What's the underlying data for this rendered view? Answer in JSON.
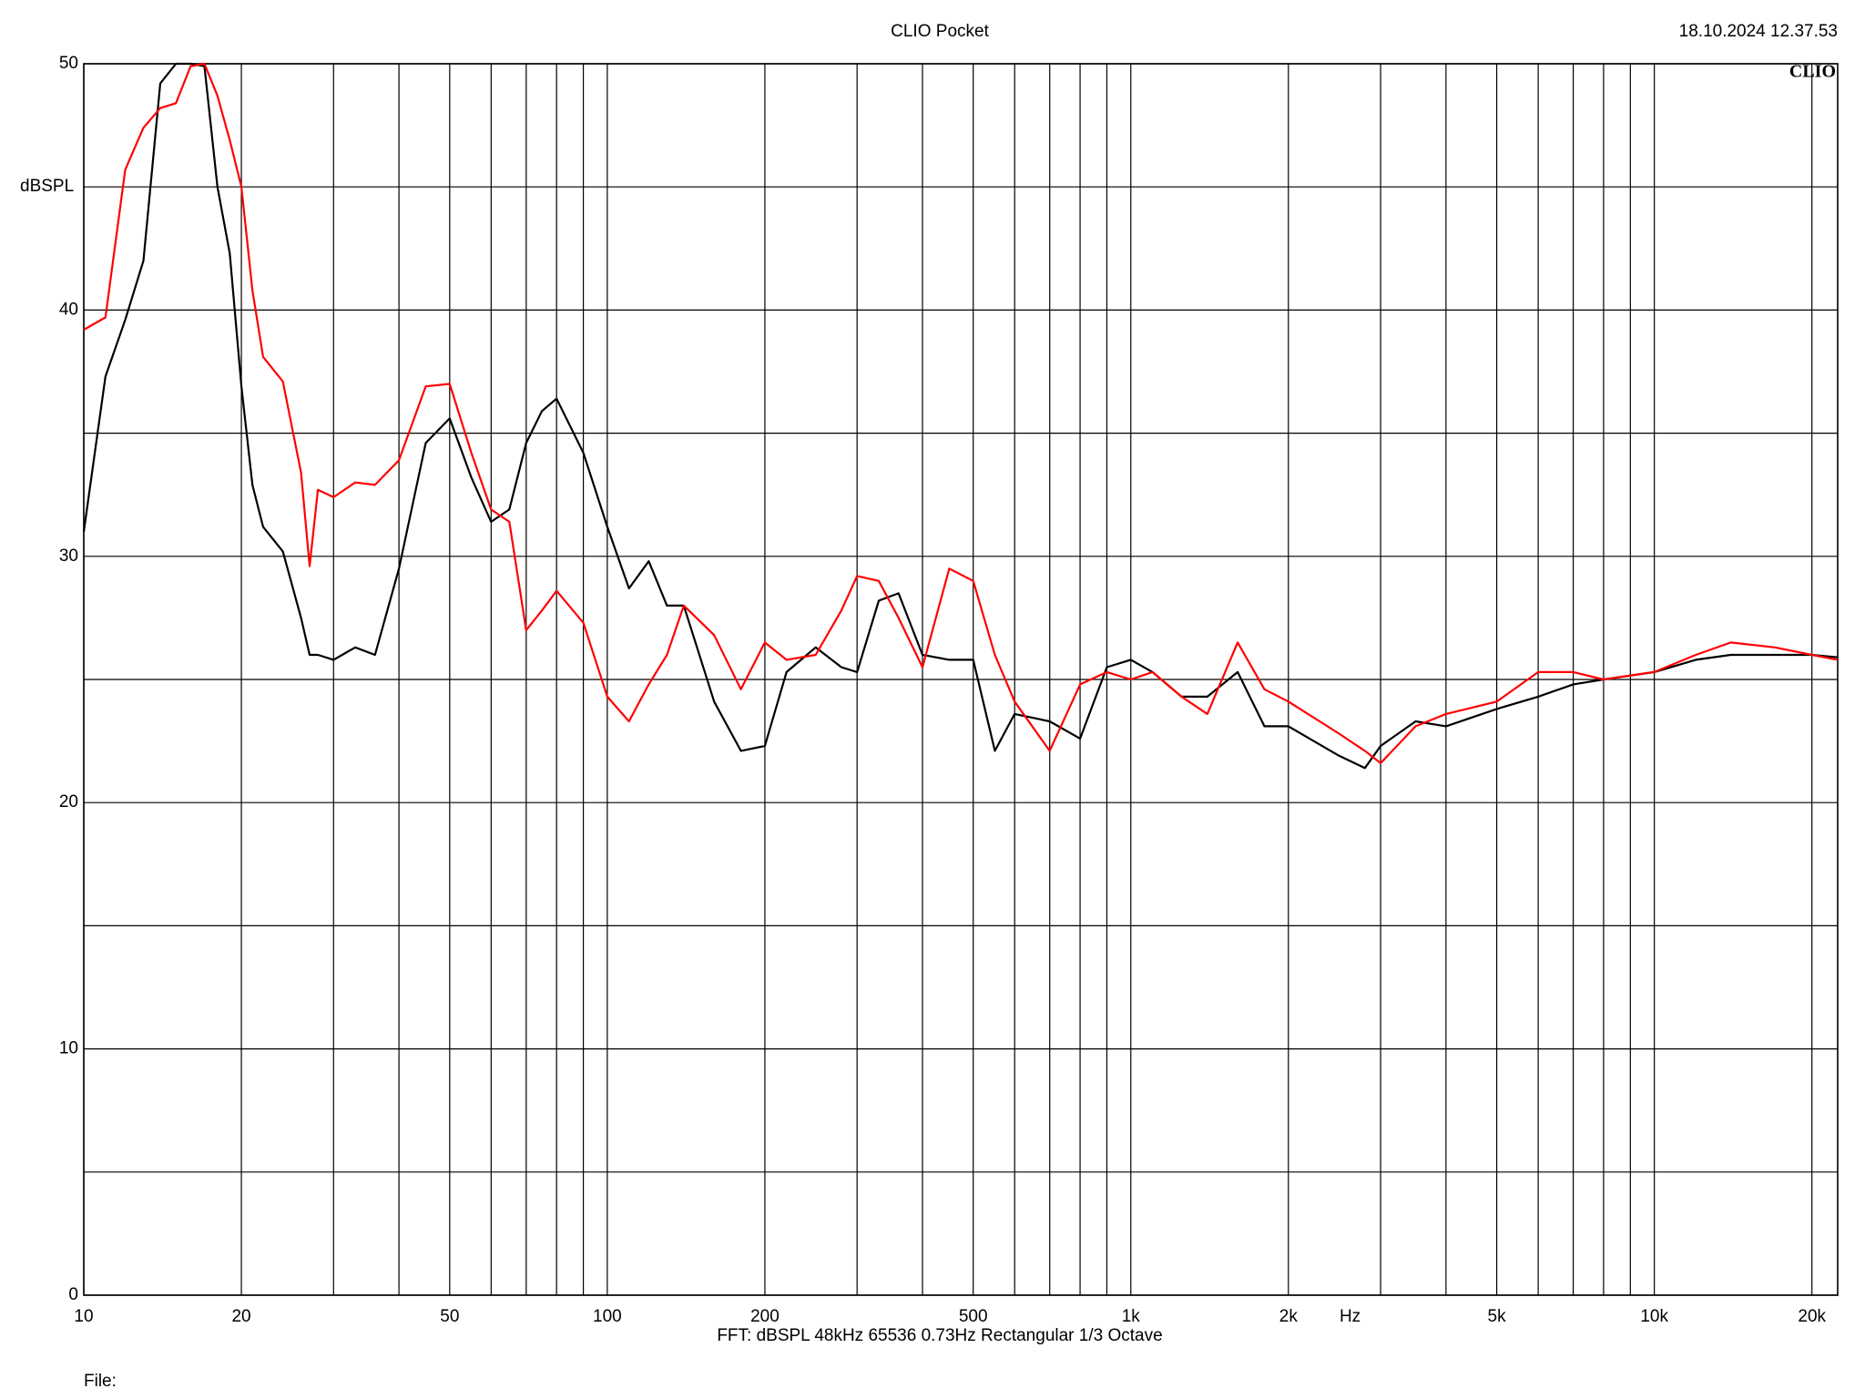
{
  "chart_data": {
    "type": "line",
    "title": "CLIO Pocket",
    "timestamp": "18.10.2024 12.37.53",
    "logo": "CLIO",
    "ylabel": "dBSPL",
    "xlabel": "Hz",
    "footer": "FFT:  dBSPL  48kHz  65536  0.73Hz  Rectangular  1/3 Octave",
    "file_label": "File:",
    "xscale": "log",
    "grid": true,
    "xlim": [
      10,
      22400
    ],
    "ylim": [
      0,
      50
    ],
    "xticks": [
      10,
      20,
      50,
      100,
      200,
      500,
      {
        "value": 1000,
        "label": "1k"
      },
      {
        "value": 2000,
        "label": "2k"
      },
      {
        "value": 5000,
        "label": "5k"
      },
      {
        "value": 10000,
        "label": "10k"
      },
      {
        "value": 20000,
        "label": "20k"
      }
    ],
    "x_minor_ticks": [
      30,
      40,
      60,
      70,
      80,
      90,
      300,
      400,
      600,
      700,
      800,
      900,
      3000,
      4000,
      6000,
      7000,
      8000,
      9000
    ],
    "yticks": [
      0,
      10,
      20,
      30,
      40,
      50
    ],
    "y_minor_ticks": [
      5,
      15,
      25,
      35,
      45
    ],
    "x": [
      10,
      11,
      12,
      13,
      14,
      15,
      16,
      17,
      18,
      19,
      20,
      21,
      22,
      24,
      26,
      27,
      28,
      30,
      33,
      36,
      40,
      45,
      50,
      55,
      60,
      65,
      70,
      75,
      80,
      90,
      100,
      110,
      120,
      130,
      140,
      160,
      180,
      200,
      220,
      250,
      280,
      300,
      330,
      360,
      400,
      450,
      500,
      550,
      600,
      700,
      800,
      900,
      1000,
      1100,
      1250,
      1400,
      1600,
      1800,
      2000,
      2500,
      2800,
      3000,
      3500,
      4000,
      5000,
      6000,
      7000,
      8000,
      10000,
      12000,
      14000,
      17000,
      20000,
      22400
    ],
    "series": [
      {
        "color": "#000000",
        "values": [
          31.0,
          37.3,
          39.6,
          42.0,
          49.2,
          50,
          50,
          49.9,
          45.0,
          42.3,
          36.9,
          32.9,
          31.2,
          30.2,
          27.5,
          26.0,
          26.0,
          25.8,
          26.3,
          26.0,
          29.5,
          34.6,
          35.6,
          33.2,
          31.4,
          31.9,
          34.6,
          35.9,
          36.4,
          34.2,
          31.2,
          28.7,
          29.8,
          28.0,
          28.0,
          24.1,
          22.1,
          22.3,
          25.3,
          26.3,
          25.5,
          25.3,
          28.2,
          28.5,
          26.0,
          25.8,
          25.8,
          22.1,
          23.6,
          23.3,
          22.6,
          25.5,
          25.8,
          25.3,
          24.3,
          24.3,
          25.3,
          23.1,
          23.1,
          21.9,
          21.4,
          22.3,
          23.3,
          23.1,
          23.8,
          24.3,
          24.8,
          25.0,
          25.3,
          25.8,
          26.0,
          26.0,
          26.0,
          25.9
        ]
      },
      {
        "color": "#ff0000",
        "values": [
          39.2,
          39.7,
          45.7,
          47.4,
          48.2,
          48.4,
          49.9,
          50,
          48.7,
          46.9,
          45.0,
          40.8,
          38.1,
          37.1,
          33.4,
          29.6,
          32.7,
          32.4,
          33.0,
          32.9,
          33.9,
          36.9,
          37.0,
          34.2,
          31.9,
          31.4,
          27.0,
          27.8,
          28.6,
          27.3,
          24.3,
          23.3,
          24.8,
          26.0,
          28.0,
          26.8,
          24.6,
          26.5,
          25.8,
          26.0,
          27.8,
          29.2,
          29.0,
          27.5,
          25.5,
          29.5,
          29.0,
          26.0,
          24.1,
          22.1,
          24.8,
          25.3,
          25.0,
          25.3,
          24.3,
          23.6,
          26.5,
          24.6,
          24.1,
          22.8,
          22.1,
          21.6,
          23.1,
          23.6,
          24.1,
          25.3,
          25.3,
          25.0,
          25.3,
          26.0,
          26.5,
          26.3,
          26.0,
          25.8
        ]
      }
    ]
  }
}
